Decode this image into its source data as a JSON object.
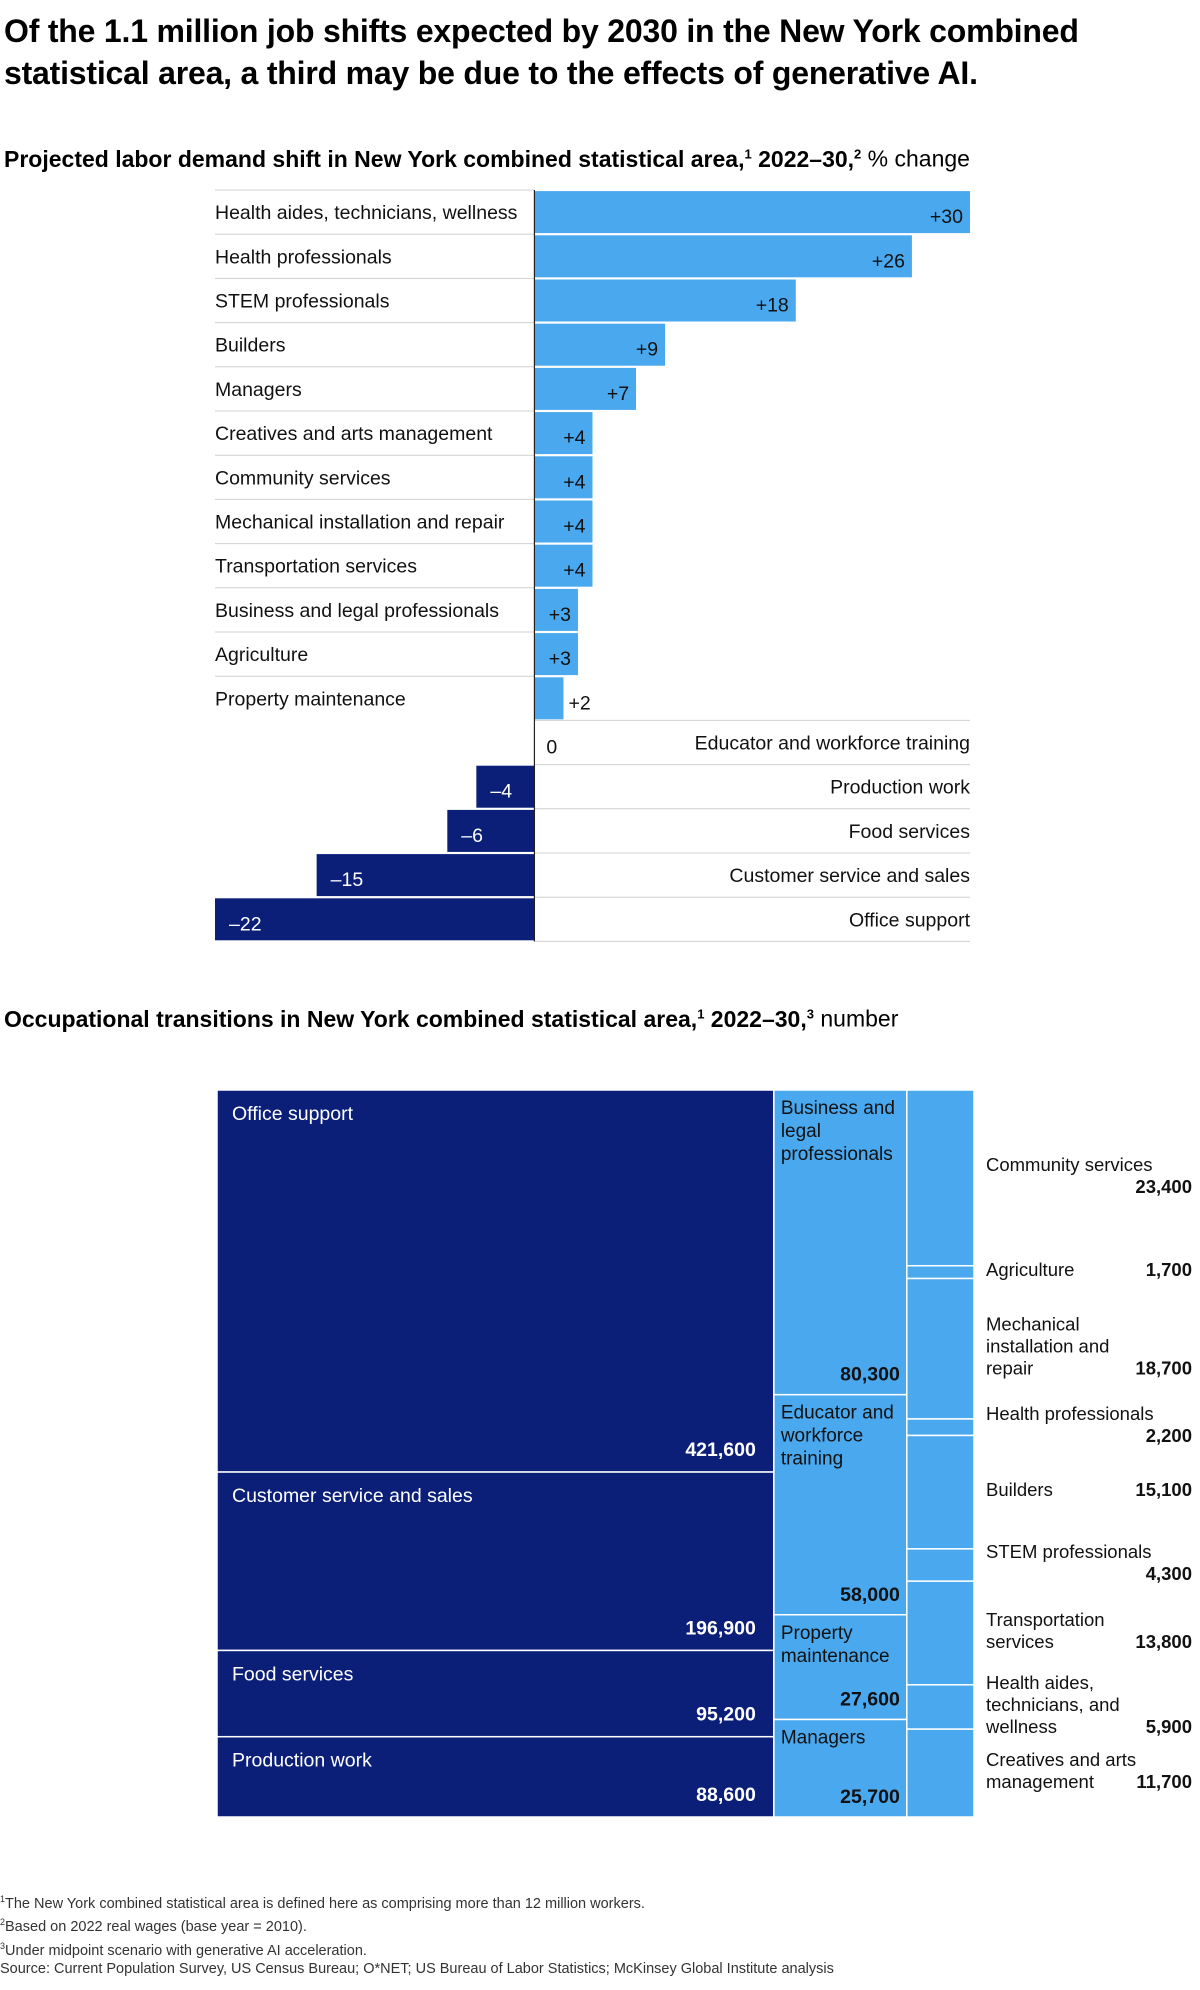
{
  "headline": "Of the 1.1 million job shifts expected by 2030 in the New York combined statistical area, a third may be due to the effects of generative AI.",
  "colors": {
    "positive": "#4aa8ee",
    "negative": "#0b1f78",
    "treemap_light": "#4aa8ee",
    "treemap_dark": "#0b1f78",
    "rule": "#d0d0d0",
    "axis": "#222222"
  },
  "chart_data": [
    {
      "type": "bar",
      "orientation": "horizontal",
      "title": "Projected labor demand shift in New York combined statistical area,",
      "title_sup1": "1",
      "title_years": " 2022–30,",
      "title_sup2": "2",
      "unit": " % change",
      "categories": [
        "Health aides, technicians, wellness",
        "Health professionals",
        "STEM professionals",
        "Builders",
        "Managers",
        "Creatives and arts management",
        "Community services",
        "Mechanical installation and repair",
        "Transportation services",
        "Business and legal professionals",
        "Agriculture",
        "Property maintenance",
        "Educator and workforce training",
        "Production work",
        "Food services",
        "Customer service and sales",
        "Office support"
      ],
      "values": [
        30,
        26,
        18,
        9,
        7,
        4,
        4,
        4,
        4,
        3,
        3,
        2,
        0,
        -4,
        -6,
        -15,
        -22
      ],
      "value_labels": [
        "+30",
        "+26",
        "+18",
        "+9",
        "+7",
        "+4",
        "+4",
        "+4",
        "+4",
        "+3",
        "+3",
        "+2",
        "0",
        "–4",
        "–6",
        "–15",
        "–22"
      ],
      "xlim": [
        -22,
        30
      ]
    },
    {
      "type": "treemap",
      "title": "Occupational transitions in New York combined statistical area,",
      "title_sup1": "1",
      "title_years": " 2022–30,",
      "title_sup2": "3",
      "unit": " number",
      "items": [
        {
          "label": "Office support",
          "value": 421600,
          "value_label": "421,600",
          "group": "decline"
        },
        {
          "label": "Customer service and sales",
          "value": 196900,
          "value_label": "196,900",
          "group": "decline"
        },
        {
          "label": "Food services",
          "value": 95200,
          "value_label": "95,200",
          "group": "decline"
        },
        {
          "label": "Production work",
          "value": 88600,
          "value_label": "88,600",
          "group": "decline"
        },
        {
          "label": "Business and legal professionals",
          "value": 80300,
          "value_label": "80,300",
          "group": "middle"
        },
        {
          "label": "Educator and workforce training",
          "value": 58000,
          "value_label": "58,000",
          "group": "middle"
        },
        {
          "label": "Property maintenance",
          "value": 27600,
          "value_label": "27,600",
          "group": "middle"
        },
        {
          "label": "Managers",
          "value": 25700,
          "value_label": "25,700",
          "group": "middle"
        },
        {
          "label": "Community services",
          "value": 23400,
          "value_label": "23,400",
          "group": "small"
        },
        {
          "label": "Agriculture",
          "value": 1700,
          "value_label": "1,700",
          "group": "small"
        },
        {
          "label": "Mechanical installation and repair",
          "value": 18700,
          "value_label": "18,700",
          "group": "small"
        },
        {
          "label": "Health professionals",
          "value": 2200,
          "value_label": "2,200",
          "group": "small"
        },
        {
          "label": "Builders",
          "value": 15100,
          "value_label": "15,100",
          "group": "small"
        },
        {
          "label": "STEM professionals",
          "value": 4300,
          "value_label": "4,300",
          "group": "small"
        },
        {
          "label": "Transportation services",
          "value": 13800,
          "value_label": "13,800",
          "group": "small"
        },
        {
          "label": "Health aides, technicians, and wellness",
          "value": 5900,
          "value_label": "5,900",
          "group": "small"
        },
        {
          "label": "Creatives and arts management",
          "value": 11700,
          "value_label": "11,700",
          "group": "small"
        }
      ]
    }
  ],
  "footnotes": [
    {
      "sup": "1",
      "text": "The New York combined statistical area is defined here as comprising more than 12 million workers."
    },
    {
      "sup": "2",
      "text": "Based on 2022 real wages (base year = 2010)."
    },
    {
      "sup": "3",
      "text": "Under midpoint scenario with generative AI acceleration."
    }
  ],
  "source": "Source: Current Population Survey, US Census Bureau; O*NET; US Bureau of Labor Statistics; McKinsey Global Institute analysis"
}
